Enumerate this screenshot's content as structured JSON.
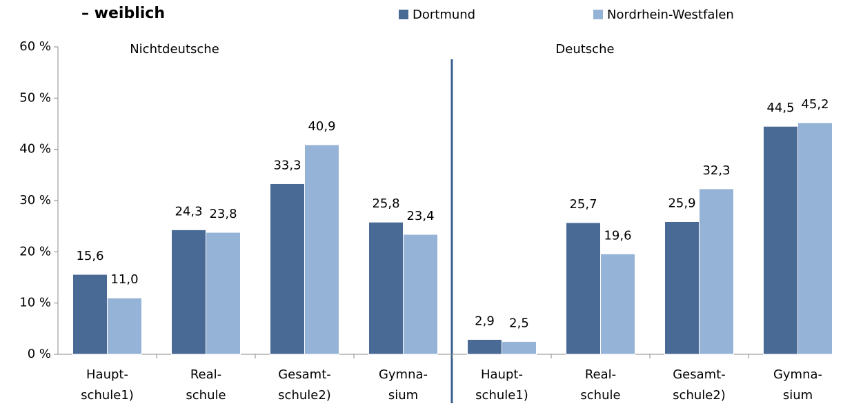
{
  "chart_data": {
    "type": "bar",
    "title": "– weiblich",
    "annotations": [
      "Nichtdeutsche",
      "Deutsche"
    ],
    "categories": [
      "Haupt-\nschule1)",
      "Real-\nschule",
      "Gesamt-\nschule2)",
      "Gymna-\nsium",
      "Haupt-\nschule1)",
      "Real-\nschule",
      "Gesamt-\nschule2)",
      "Gymna-\nsium"
    ],
    "series": [
      {
        "name": "Dortmund",
        "color": "#4a6a96",
        "values": [
          15.6,
          24.3,
          33.3,
          25.8,
          2.9,
          25.7,
          25.9,
          44.5
        ],
        "value_labels": [
          "15,6",
          "24,3",
          "33,3",
          "25,8",
          "2,9",
          "25,7",
          "25,9",
          "44,5"
        ]
      },
      {
        "name": "Nordrhein-Westfalen",
        "color": "#95b3d7",
        "values": [
          11.0,
          23.8,
          40.9,
          23.4,
          2.5,
          19.6,
          32.3,
          45.2
        ],
        "value_labels": [
          "11,0",
          "23,8",
          "40,9",
          "23,4",
          "2,5",
          "19,6",
          "32,3",
          "45,2"
        ]
      }
    ],
    "ylim": [
      0,
      60
    ],
    "yticks": [
      {
        "value": 0,
        "label": "0 %"
      },
      {
        "value": 10,
        "label": "10 %"
      },
      {
        "value": 20,
        "label": "20 %"
      },
      {
        "value": 30,
        "label": "30 %"
      },
      {
        "value": 40,
        "label": "40 %"
      },
      {
        "value": 50,
        "label": "50 %"
      },
      {
        "value": 60,
        "label": "60 %"
      }
    ],
    "legend": "top"
  }
}
